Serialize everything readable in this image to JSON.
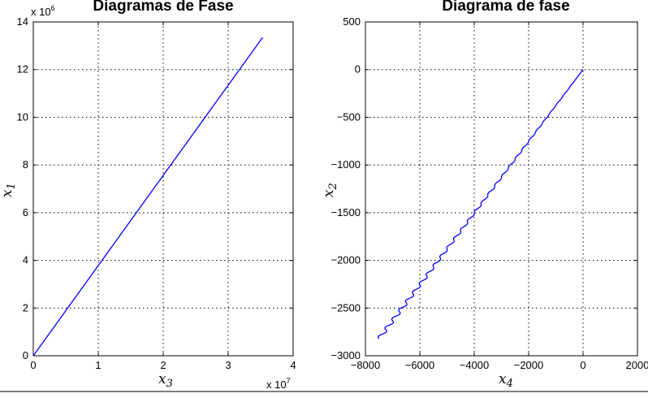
{
  "chart_data": [
    {
      "type": "line",
      "title": "Diagramas de Fase",
      "xlabel": "x_3",
      "ylabel": "x_1",
      "xlim": [
        0,
        4
      ],
      "ylim": [
        0,
        14
      ],
      "x_multiplier_label": "x 10^7",
      "y_multiplier_label": "x 10^6",
      "x_ticks": [
        "0",
        "1",
        "2",
        "3",
        "4"
      ],
      "y_ticks": [
        "0",
        "2",
        "4",
        "6",
        "8",
        "10",
        "12",
        "14"
      ],
      "grid": true,
      "series": [
        {
          "x": [
            0,
            3.53
          ],
          "y": [
            0,
            13.35
          ]
        }
      ]
    },
    {
      "type": "line",
      "title": "Diagrama de fase",
      "xlabel": "x_4",
      "ylabel": "x_2",
      "xlim": [
        -8000,
        2000
      ],
      "ylim": [
        -3000,
        500
      ],
      "x_ticks": [
        "−8000",
        "−6000",
        "−4000",
        "−2000",
        "0",
        "2000"
      ],
      "y_ticks": [
        "−3000",
        "−2500",
        "−2000",
        "−1500",
        "−1000",
        "−500",
        "0",
        "500"
      ],
      "grid": true,
      "series": [
        {
          "x": [
            0,
            -7500
          ],
          "y": [
            0,
            -2820
          ],
          "oscillation_amplitude_x": 90,
          "oscillation_cycles": 30
        }
      ]
    }
  ]
}
